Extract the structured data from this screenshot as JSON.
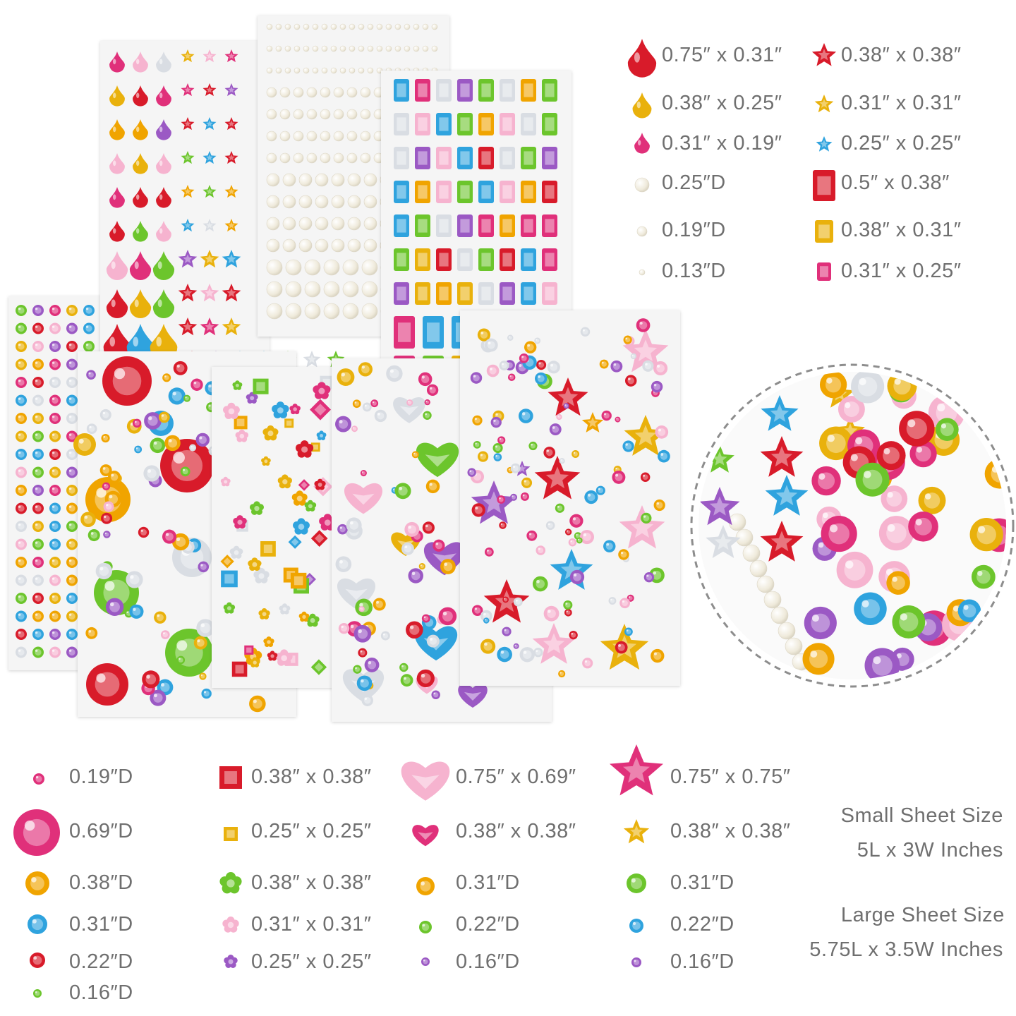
{
  "colors": {
    "red": "#d81b2a",
    "pink": "#e0307a",
    "gold": "#e9b10c",
    "pearl": "#f2efe4",
    "blue": "#2fa3de",
    "green": "#6cc52c",
    "purple": "#9b59c4",
    "orange": "#f0a400",
    "lightpink": "#f6b3cf",
    "darkred": "#b0101c"
  },
  "top_legend": {
    "left": [
      {
        "label": "0.75″ x 0.31″",
        "icon": "red-teardrop-icon"
      },
      {
        "label": "0.38″ x 0.25″",
        "icon": "gold-teardrop-icon"
      },
      {
        "label": "0.31″ x 0.19″",
        "icon": "pink-teardrop-icon"
      },
      {
        "label": "0.25″D",
        "icon": "pearl-icon"
      },
      {
        "label": "0.19″D",
        "icon": "pearl-icon"
      },
      {
        "label": "0.13″D",
        "icon": "pearl-icon"
      }
    ],
    "right": [
      {
        "label": "0.38″ x 0.38″",
        "icon": "red-star-icon"
      },
      {
        "label": "0.31″ x 0.31″",
        "icon": "gold-star-icon"
      },
      {
        "label": "0.25″ x 0.25″",
        "icon": "blue-star-icon"
      },
      {
        "label": "0.5″ x 0.38″",
        "icon": "red-rectangle-gem-icon"
      },
      {
        "label": "0.38″ x 0.31″",
        "icon": "gold-rectangle-gem-icon"
      },
      {
        "label": "0.31″ x 0.25″",
        "icon": "pink-rectangle-gem-icon"
      }
    ]
  },
  "bottom_legend": {
    "col1": [
      {
        "label": "0.19″D",
        "icon": "pink-round-gem-icon"
      },
      {
        "label": "0.69″D",
        "icon": "pink-round-gem-icon"
      },
      {
        "label": "0.38″D",
        "icon": "orange-round-gem-icon"
      },
      {
        "label": "0.31″D",
        "icon": "blue-round-gem-icon"
      },
      {
        "label": "0.22″D",
        "icon": "red-round-gem-icon"
      },
      {
        "label": "0.16″D",
        "icon": "green-round-gem-icon"
      }
    ],
    "col2": [
      {
        "label": "0.38″ x 0.38″",
        "icon": "red-square-gem-icon"
      },
      {
        "label": "0.25″ x 0.25″",
        "icon": "gold-square-gem-icon"
      },
      {
        "label": "0.38″ x 0.38″",
        "icon": "green-flower-gem-icon"
      },
      {
        "label": "0.31″ x 0.31″",
        "icon": "pink-flower-gem-icon"
      },
      {
        "label": "0.25″ x 0.25″",
        "icon": "purple-flower-gem-icon"
      }
    ],
    "col3": [
      {
        "label": "0.75″ x 0.69″",
        "icon": "pink-heart-gem-icon"
      },
      {
        "label": "0.38″ x 0.38″",
        "icon": "pink-heart-gem-icon"
      },
      {
        "label": "0.31″D",
        "icon": "orange-round-gem-icon"
      },
      {
        "label": "0.22″D",
        "icon": "green-round-gem-icon"
      },
      {
        "label": "0.16″D",
        "icon": "purple-round-gem-icon"
      }
    ],
    "col4": [
      {
        "label": "0.75″ x 0.75″",
        "icon": "pink-star-icon"
      },
      {
        "label": "0.38″ x 0.38″",
        "icon": "gold-star-icon"
      },
      {
        "label": "0.31″D",
        "icon": "green-round-gem-icon"
      },
      {
        "label": "0.22″D",
        "icon": "blue-round-gem-icon"
      },
      {
        "label": "0.16″D",
        "icon": "purple-round-gem-icon"
      }
    ]
  },
  "sheet_sizes": {
    "small_title": "Small Sheet Size",
    "small_value": "5L x 3W Inches",
    "large_title": "Large Sheet Size",
    "large_value": "5.75L x 3.5W Inches"
  }
}
